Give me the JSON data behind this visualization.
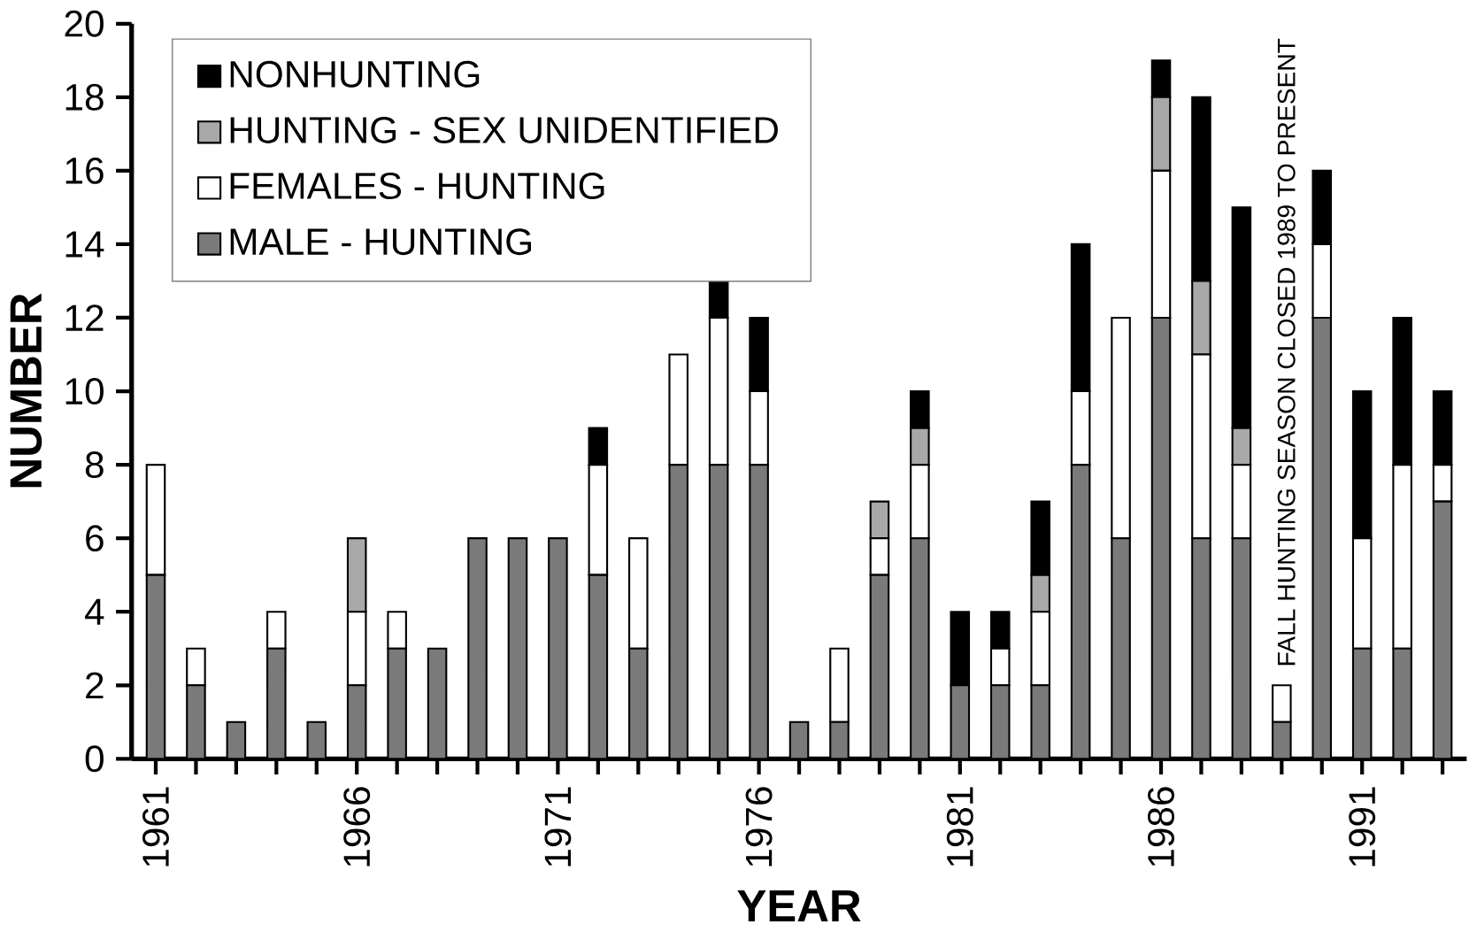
{
  "chart_data": {
    "type": "bar",
    "stacked": true,
    "xlabel": "YEAR",
    "ylabel": "NUMBER",
    "categories": [
      "1961",
      null,
      null,
      null,
      null,
      "1966",
      null,
      null,
      null,
      null,
      "1971",
      null,
      null,
      null,
      null,
      "1976",
      null,
      null,
      null,
      null,
      "1981",
      null,
      null,
      null,
      null,
      "1986",
      null,
      null,
      null,
      null,
      "1991",
      null,
      null
    ],
    "series": [
      {
        "name": "MALE - HUNTING",
        "color": "#7a7a7a",
        "values": [
          5,
          2,
          1,
          3,
          1,
          2,
          3,
          3,
          6,
          6,
          6,
          5,
          3,
          8,
          8,
          8,
          1,
          1,
          5,
          6,
          2,
          2,
          2,
          8,
          6,
          12,
          6,
          6,
          1,
          12,
          3,
          3,
          7
        ]
      },
      {
        "name": "FEMALES - HUNTING",
        "color": "#ffffff",
        "values": [
          3,
          1,
          0,
          1,
          0,
          2,
          1,
          0,
          0,
          0,
          0,
          3,
          3,
          3,
          4,
          2,
          0,
          2,
          1,
          2,
          0,
          1,
          2,
          2,
          6,
          4,
          5,
          2,
          1,
          2,
          3,
          5,
          1
        ]
      },
      {
        "name": "HUNTING - SEX UNIDENTIFIED",
        "color": "#a8a8a8",
        "values": [
          0,
          0,
          0,
          0,
          0,
          2,
          0,
          0,
          0,
          0,
          0,
          0,
          0,
          0,
          0,
          0,
          0,
          0,
          1,
          1,
          0,
          0,
          1,
          0,
          0,
          2,
          2,
          1,
          0,
          0,
          0,
          0,
          0
        ]
      },
      {
        "name": "NONHUNTING",
        "color": "#000000",
        "values": [
          0,
          0,
          0,
          0,
          0,
          0,
          0,
          0,
          0,
          0,
          0,
          1,
          0,
          0,
          1,
          2,
          0,
          0,
          0,
          1,
          2,
          1,
          2,
          4,
          0,
          1,
          5,
          6,
          0,
          2,
          4,
          4,
          2
        ]
      }
    ],
    "ylim": [
      0,
      20
    ],
    "yticks": [
      0,
      2,
      4,
      6,
      8,
      10,
      12,
      14,
      16,
      18,
      20
    ],
    "grid": false,
    "legend": "top left",
    "annotations": [
      "FALL HUNTING SEASON CLOSED 1989 TO PRESENT"
    ]
  }
}
